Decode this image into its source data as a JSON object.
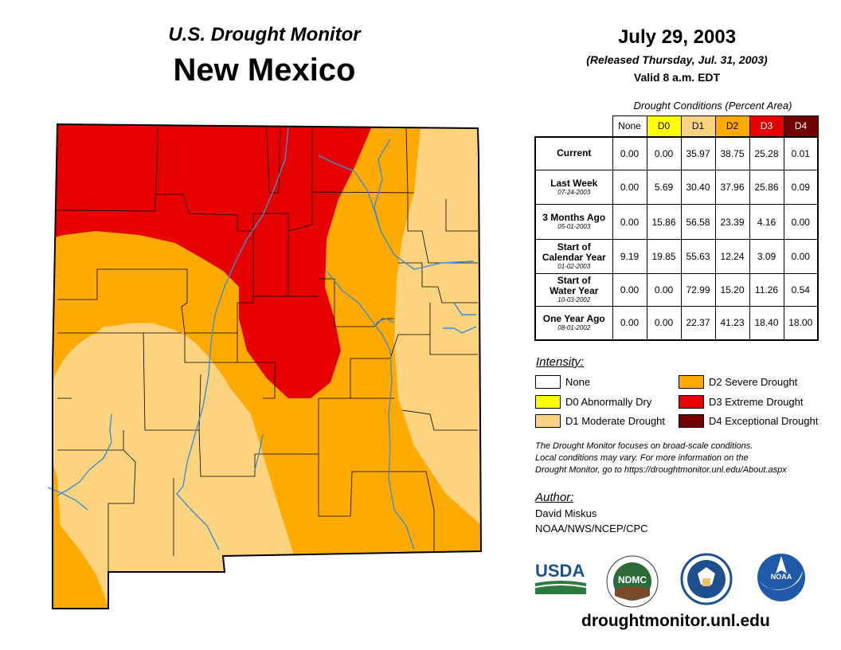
{
  "header": {
    "subtitle": "U.S. Drought Monitor",
    "state": "New Mexico",
    "date": "July 29, 2003",
    "released": "(Released Thursday, Jul. 31, 2003)",
    "valid": "Valid 8 a.m. EDT"
  },
  "table": {
    "caption": "Drought Conditions (Percent Area)",
    "columns": [
      "None",
      "D0",
      "D1",
      "D2",
      "D3",
      "D4"
    ],
    "column_colors": [
      "#ffffff",
      "#ffff00",
      "#fcd37f",
      "#ffaa00",
      "#e60000",
      "#730000"
    ],
    "rows": [
      {
        "label": "Current",
        "date": "",
        "values": [
          "0.00",
          "0.00",
          "35.97",
          "38.75",
          "25.28",
          "0.01"
        ]
      },
      {
        "label": "Last Week",
        "date": "07-24-2003",
        "values": [
          "0.00",
          "5.69",
          "30.40",
          "37.96",
          "25.86",
          "0.09"
        ]
      },
      {
        "label": "3 Months Ago",
        "date": "05-01-2003",
        "values": [
          "0.00",
          "15.86",
          "56.58",
          "23.39",
          "4.16",
          "0.00"
        ]
      },
      {
        "label_line1": "Start of",
        "label_line2": "Calendar Year",
        "date": "01-02-2003",
        "values": [
          "9.19",
          "19.85",
          "55.63",
          "12.24",
          "3.09",
          "0.00"
        ]
      },
      {
        "label_line1": "Start of",
        "label_line2": "Water Year",
        "date": "10-03-2002",
        "values": [
          "0.00",
          "0.00",
          "72.99",
          "15.20",
          "11.26",
          "0.54"
        ]
      },
      {
        "label": "One Year Ago",
        "date": "08-01-2002",
        "values": [
          "0.00",
          "0.00",
          "22.37",
          "41.23",
          "18.40",
          "18.00"
        ]
      }
    ]
  },
  "legend": {
    "title": "Intensity:",
    "items": [
      {
        "label": "None",
        "color": "#ffffff"
      },
      {
        "label": "D0 Abnormally Dry",
        "color": "#ffff00"
      },
      {
        "label": "D1 Moderate Drought",
        "color": "#fcd37f"
      },
      {
        "label": "D2 Severe Drought",
        "color": "#ffaa00"
      },
      {
        "label": "D3 Extreme Drought",
        "color": "#e60000"
      },
      {
        "label": "D4 Exceptional Drought",
        "color": "#730000"
      }
    ]
  },
  "note": {
    "line1": "The Drought Monitor focuses on broad-scale conditions.",
    "line2": "Local conditions may vary. For more information on the",
    "line3": "Drought Monitor, go to https://droughtmonitor.unl.edu/About.aspx"
  },
  "author": {
    "title": "Author:",
    "name": "David Miskus",
    "org": "NOAA/NWS/NCEP/CPC"
  },
  "logos": {
    "usda": "USDA",
    "ndmc": "NDMC",
    "noaa": "NOAA"
  },
  "url": "droughtmonitor.unl.edu",
  "map_colors": {
    "d1": "#fcd37f",
    "d2": "#ffaa00",
    "d3": "#e60000",
    "river": "#3d8fd6",
    "county": "#000000"
  }
}
